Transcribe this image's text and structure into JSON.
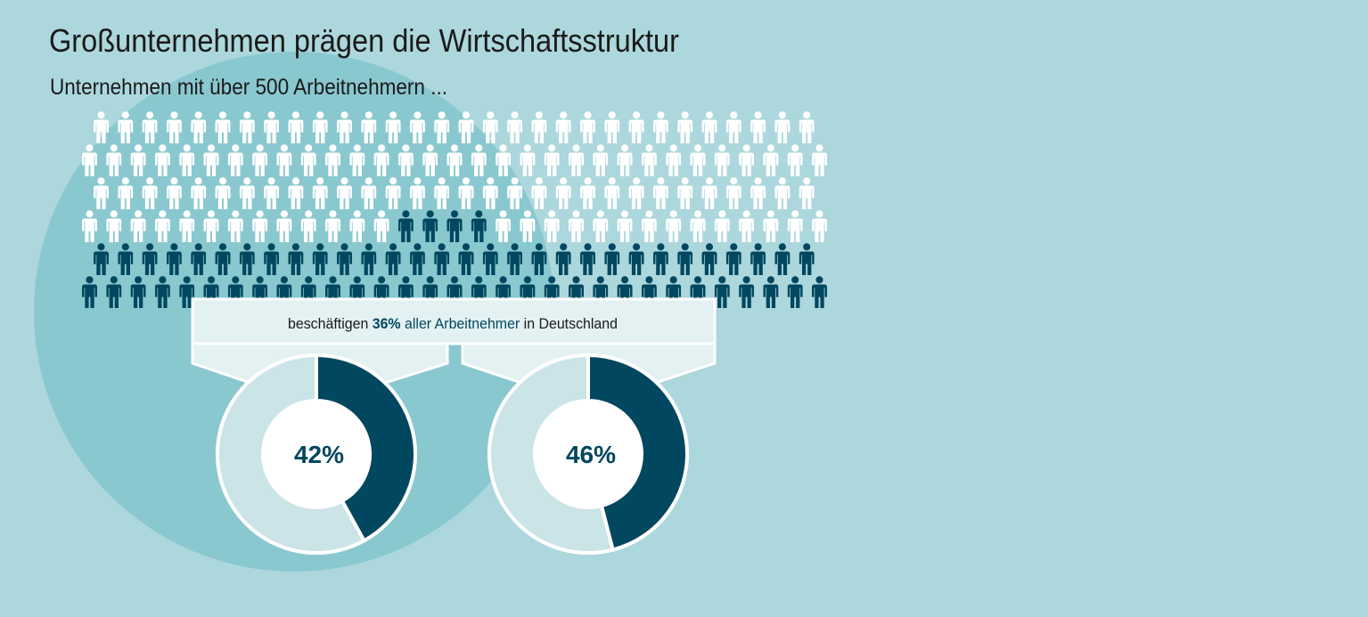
{
  "title": "Großunternehmen prägen die Wirtschaftsstruktur",
  "subtitle": "Unternehmen mit über 500 Arbeitnehmern ...",
  "callout": {
    "pre": "beschäftigen ",
    "value": "36%",
    "mid": " aller Arbeitnehmer",
    "post": " in Deutschland"
  },
  "colors": {
    "background": "#acd7dd",
    "circle": "#8ac8cf",
    "dark": "#00475f",
    "light_segment": "#cae4e8",
    "callout_fill": "#e3f1f2",
    "figure_light": "#ffffff"
  },
  "icon": "person-icon",
  "chart_data": [
    {
      "type": "pictogram",
      "share_highlighted_percent": 36,
      "rows": [
        {
          "count": 30,
          "dark_from": null
        },
        {
          "count": 31,
          "dark_from": null
        },
        {
          "count": 30,
          "dark_from": null
        },
        {
          "count": 31,
          "dark_from": 13,
          "dark_to": 16
        },
        {
          "count": 30,
          "dark_from": 0
        },
        {
          "count": 31,
          "dark_from": 0
        }
      ]
    },
    {
      "type": "pie",
      "donut": true,
      "values": [
        42,
        58
      ],
      "label": "42%"
    },
    {
      "type": "pie",
      "donut": true,
      "values": [
        46,
        54
      ],
      "label": "46%"
    }
  ]
}
